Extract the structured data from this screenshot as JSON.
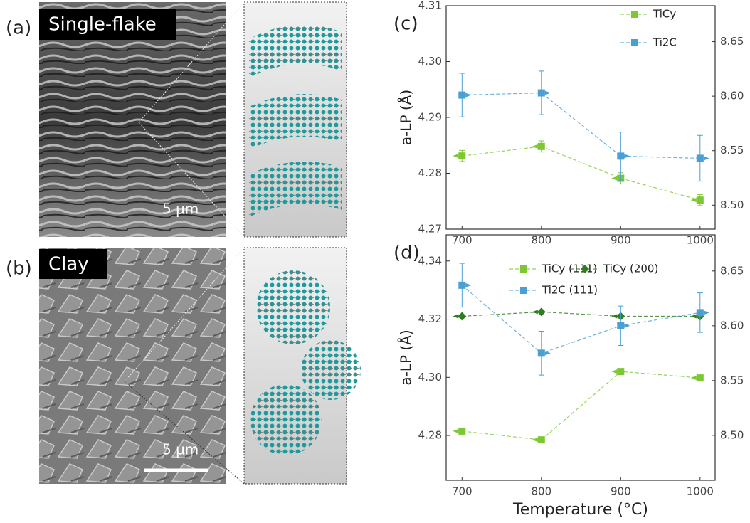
{
  "panels": [
    {
      "label": "(a)",
      "caption": "Single-flake",
      "scale": "5 µm"
    },
    {
      "label": "(b)",
      "caption": "Clay",
      "scale": "5 µm"
    }
  ],
  "chart_data": [
    {
      "type": "line",
      "panel_label": "(c)",
      "ylabel": "a-LP (Å)",
      "x": [
        700,
        800,
        900,
        1000
      ],
      "xlim": [
        680,
        1019
      ],
      "xticks": [
        700,
        800,
        900,
        1000
      ],
      "ylim": [
        4.27,
        4.31
      ],
      "yticks": [
        4.27,
        4.28,
        4.29,
        {
          "value": 4.3,
          "label": "4.30"
        },
        4.31
      ],
      "y2lim": [
        8.478,
        8.683
      ],
      "y2ticks": [
        {
          "value": 8.5,
          "label": "8.50"
        },
        8.55,
        {
          "value": 8.6,
          "label": "8.60"
        },
        8.65
      ],
      "legend": "upper right",
      "series": [
        {
          "name": "TiCy",
          "color": "#7dc832",
          "marker": "square",
          "axis": "y",
          "values": [
            4.2831,
            4.2848,
            4.2791,
            4.2752
          ],
          "errors": [
            0.001,
            0.001,
            0.001,
            0.001
          ]
        },
        {
          "name": "Ti2C",
          "color": "#4a9fd5",
          "marker": "square",
          "axis": "y2",
          "values": [
            8.601,
            8.603,
            8.545,
            8.543
          ],
          "errors": [
            0.02,
            0.02,
            0.022,
            0.021
          ]
        }
      ]
    },
    {
      "type": "line",
      "panel_label": "(d)",
      "ylabel": "a-LP (Å)",
      "xlabel": "Temperature (°C)",
      "x": [
        700,
        800,
        900,
        1000
      ],
      "xlim": [
        680,
        1019
      ],
      "xticks": [
        700,
        800,
        900,
        1000
      ],
      "ylim": [
        4.2646,
        4.349
      ],
      "yticks": [
        4.28,
        {
          "value": 4.3,
          "label": "4.30"
        },
        4.32,
        4.34
      ],
      "y2lim": [
        8.459,
        8.683
      ],
      "y2ticks": [
        {
          "value": 8.5,
          "label": "8.50"
        },
        8.55,
        {
          "value": 8.6,
          "label": "8.60"
        },
        8.65
      ],
      "legend": "upper center",
      "series": [
        {
          "name": "TiCy (111)",
          "color": "#7dc832",
          "marker": "square",
          "axis": "y",
          "values": [
            4.2815,
            4.2785,
            4.302,
            4.2998
          ]
        },
        {
          "name": "TiCy (200)",
          "color": "#2e7d1e",
          "marker": "diamond",
          "axis": "y",
          "values": [
            4.321,
            4.3225,
            4.321,
            4.321
          ]
        },
        {
          "name": "Ti2C (111)",
          "color": "#4a9fd5",
          "marker": "square",
          "axis": "y2",
          "values": [
            8.637,
            8.575,
            8.6,
            8.612
          ],
          "errors": [
            0.02,
            0.02,
            0.018,
            0.018
          ]
        }
      ]
    }
  ]
}
